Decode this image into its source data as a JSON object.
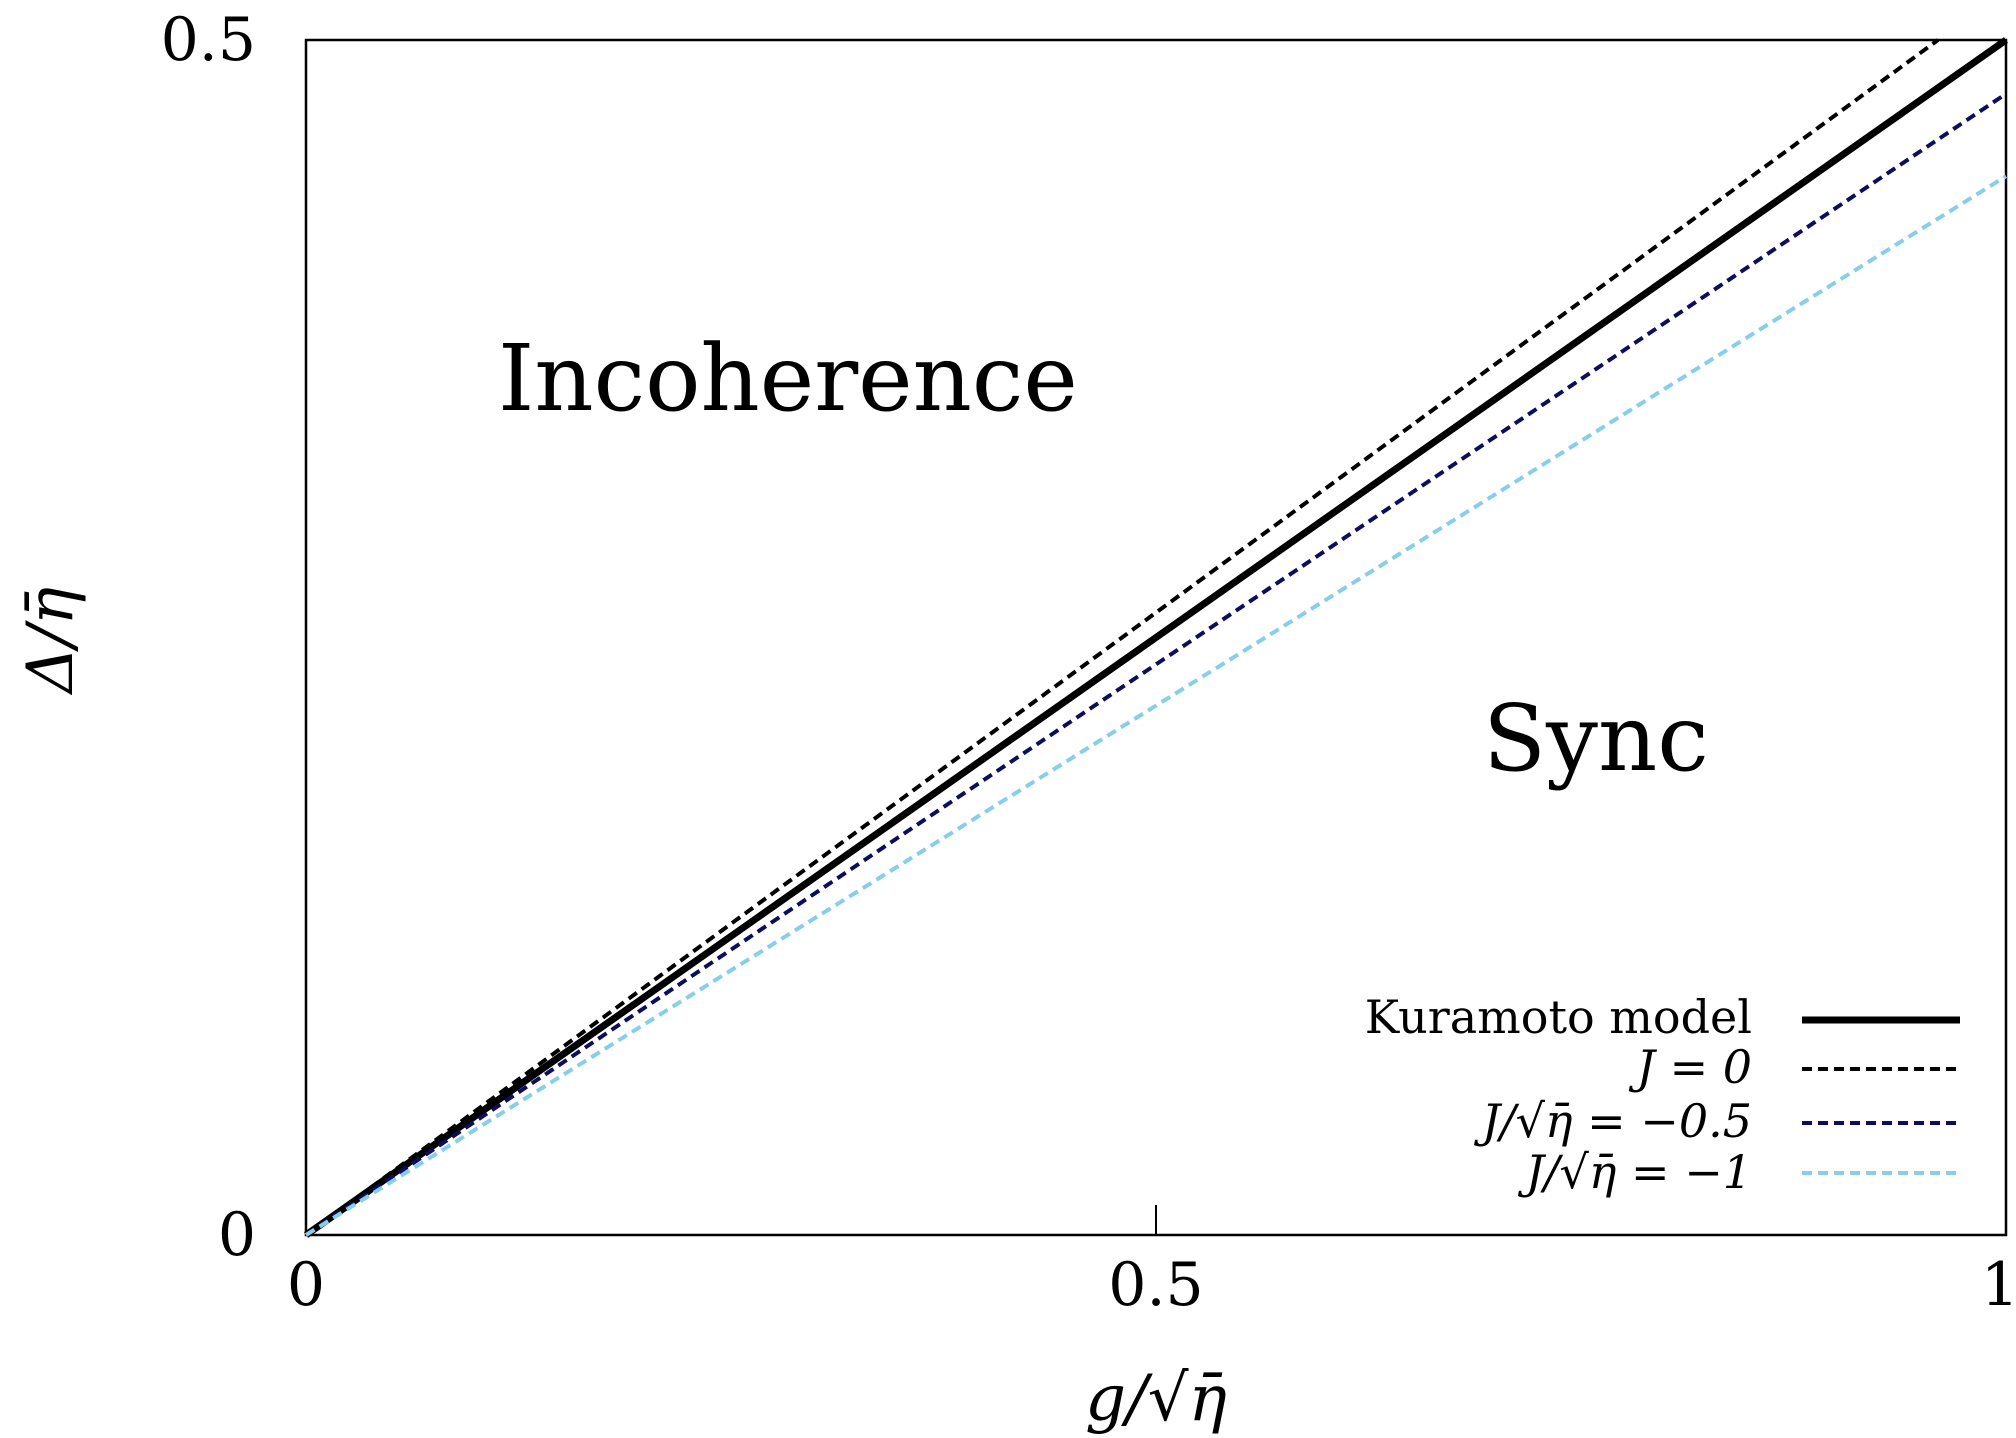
{
  "chart_data": {
    "type": "line",
    "title": "",
    "xlabel": "g/√η̄",
    "ylabel": "Δ/η̄",
    "xlim": [
      0,
      1
    ],
    "ylim": [
      0,
      0.5
    ],
    "x_ticks": [
      "0",
      "0.5",
      "1"
    ],
    "y_ticks": [
      "0",
      "0.5"
    ],
    "grid": false,
    "legend_position": "bottom-right",
    "annotations": [
      {
        "text": "Incoherence",
        "x": 0.28,
        "y": 0.36
      },
      {
        "text": "Sync",
        "x": 0.76,
        "y": 0.205
      }
    ],
    "series": [
      {
        "name": "Kuramoto model",
        "x": [
          0,
          1
        ],
        "y": [
          0,
          0.5
        ],
        "style": "solid",
        "color": "#000000"
      },
      {
        "name": "J = 0",
        "x": [
          0,
          0.96
        ],
        "y": [
          0,
          0.5
        ],
        "style": "dashed",
        "color": "#000000"
      },
      {
        "name": "J/√η̄ = −0.5",
        "x": [
          0,
          1
        ],
        "y": [
          0,
          0.4775
        ],
        "style": "dashed",
        "color": "#0d0d5e"
      },
      {
        "name": "J/√η̄ = −1",
        "x": [
          0,
          1
        ],
        "y": [
          0,
          0.443
        ],
        "style": "dashed",
        "color": "#87ceeb"
      }
    ]
  }
}
